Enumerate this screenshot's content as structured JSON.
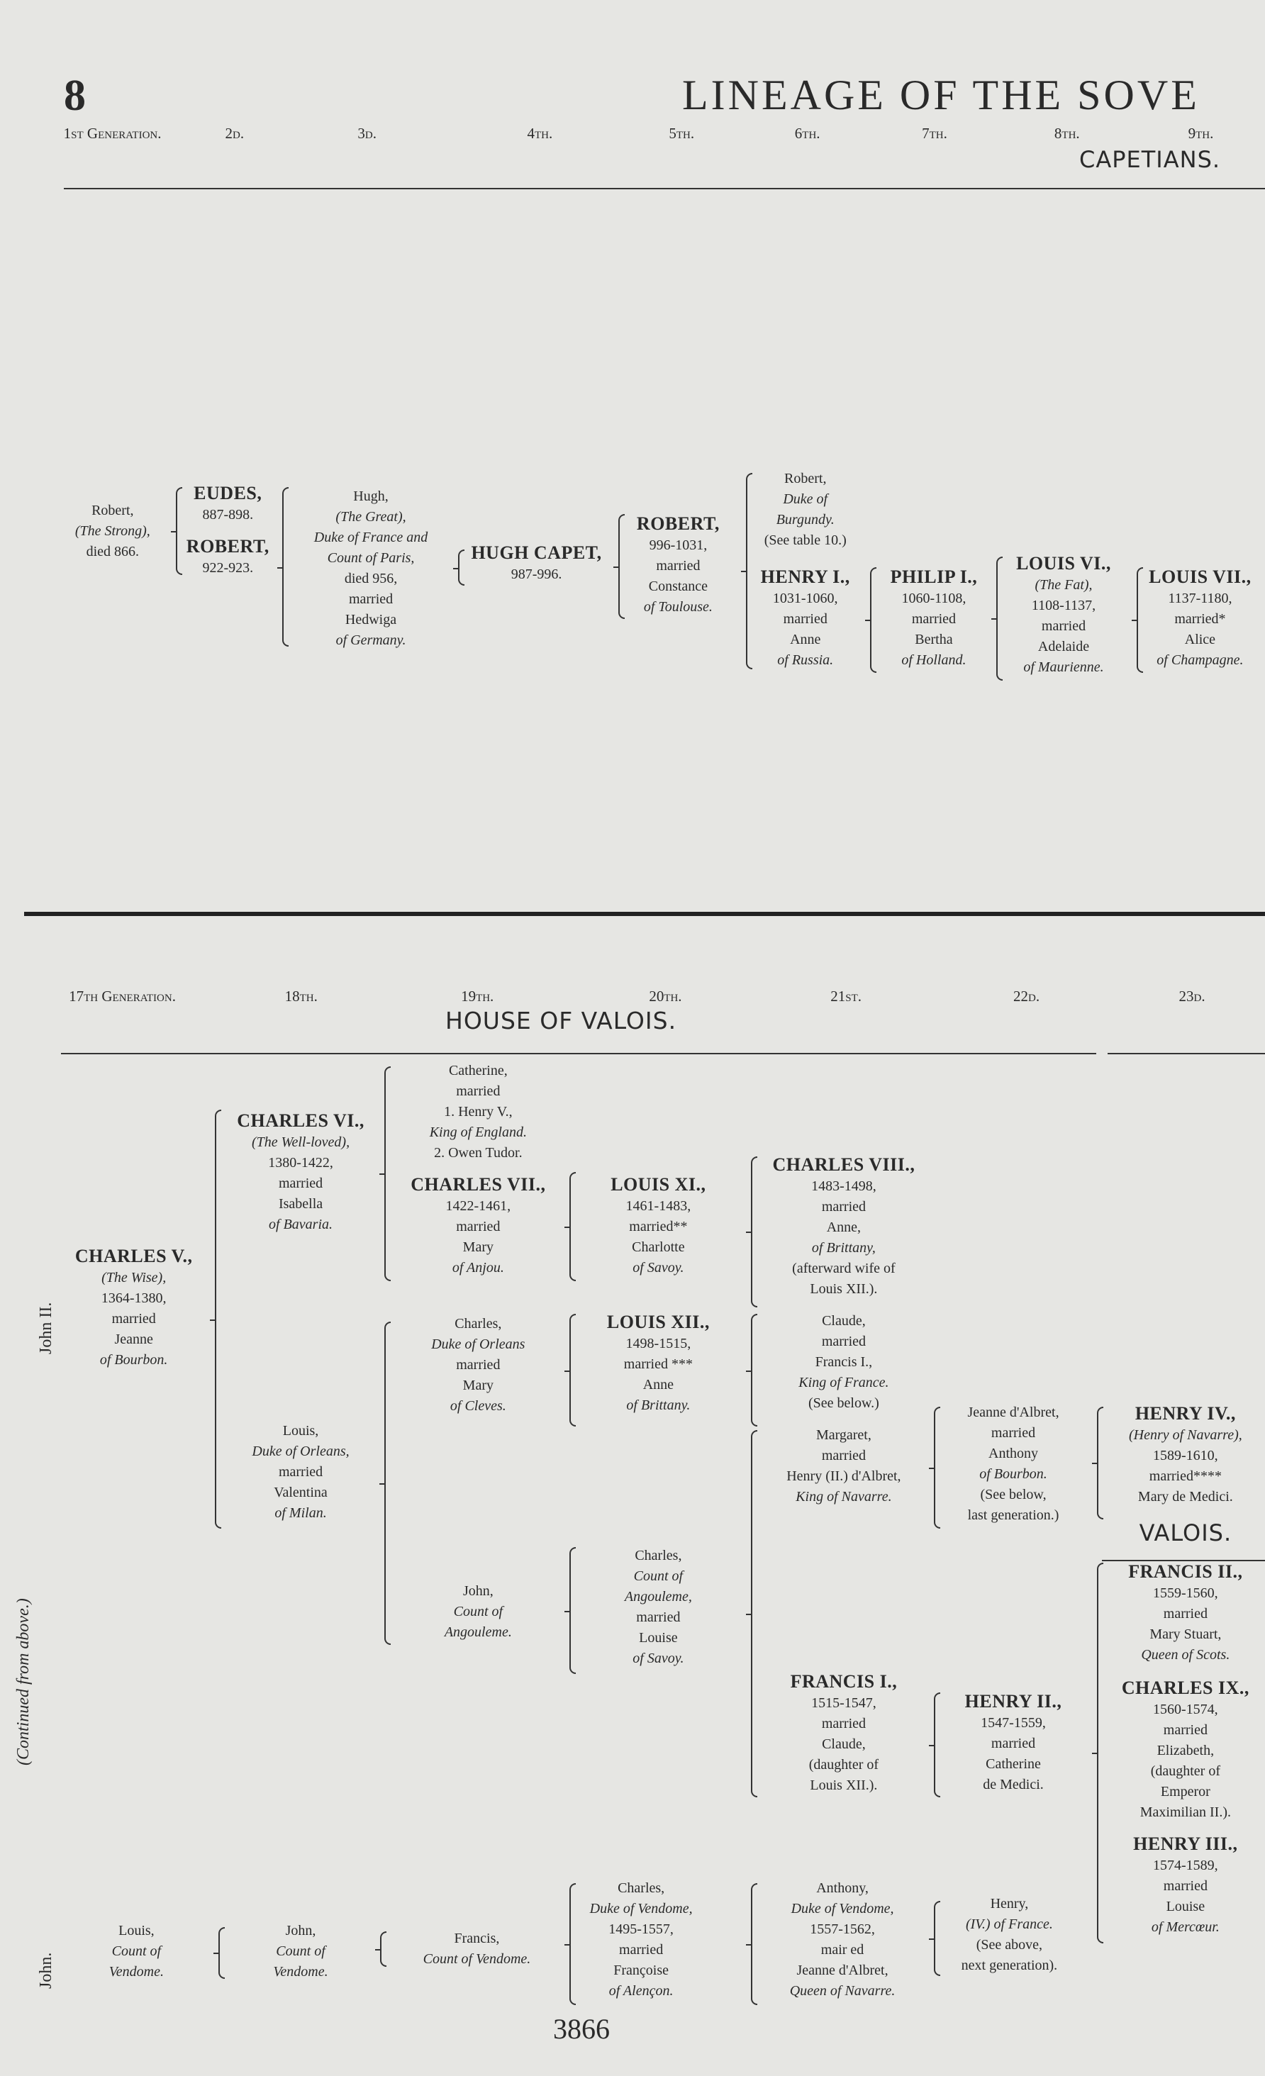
{
  "page": {
    "number": "8",
    "title": "LINEAGE OF THE SOVE",
    "folio": "3866"
  },
  "top": {
    "generations": [
      "1st Generation.",
      "2d.",
      "3d.",
      "4th.",
      "5th.",
      "6th.",
      "7th.",
      "8th.",
      "9th."
    ],
    "house": "CAPETIANS.",
    "entries": [
      {
        "lines": [
          {
            "t": "Robert,",
            "s": ""
          },
          {
            "t": "(The Strong),",
            "s": "i"
          },
          {
            "t": "died 866.",
            "s": ""
          }
        ]
      },
      {
        "lines": [
          {
            "t": "EUDES,",
            "s": "b"
          },
          {
            "t": "887-898.",
            "s": ""
          }
        ]
      },
      {
        "lines": [
          {
            "t": "ROBERT,",
            "s": "b"
          },
          {
            "t": "922-923.",
            "s": ""
          }
        ]
      },
      {
        "lines": [
          {
            "t": "Hugh,",
            "s": ""
          },
          {
            "t": "(The Great),",
            "s": "i"
          },
          {
            "t": "Duke of France and",
            "s": "i"
          },
          {
            "t": "Count of Paris,",
            "s": "i"
          },
          {
            "t": "died 956,",
            "s": ""
          },
          {
            "t": "married",
            "s": ""
          },
          {
            "t": "Hedwiga",
            "s": ""
          },
          {
            "t": "of Germany.",
            "s": "i"
          }
        ]
      },
      {
        "lines": [
          {
            "t": "HUGH CAPET,",
            "s": "b"
          },
          {
            "t": "987-996.",
            "s": ""
          }
        ]
      },
      {
        "lines": [
          {
            "t": "ROBERT,",
            "s": "b"
          },
          {
            "t": "996-1031,",
            "s": ""
          },
          {
            "t": "married",
            "s": ""
          },
          {
            "t": "Constance",
            "s": ""
          },
          {
            "t": "of Toulouse.",
            "s": "i"
          }
        ]
      },
      {
        "lines": [
          {
            "t": "Robert,",
            "s": ""
          },
          {
            "t": "Duke of",
            "s": "i"
          },
          {
            "t": "Burgundy.",
            "s": "i"
          },
          {
            "t": "(See table 10.)",
            "s": ""
          }
        ]
      },
      {
        "lines": [
          {
            "t": "HENRY I.,",
            "s": "b"
          },
          {
            "t": "1031-1060,",
            "s": ""
          },
          {
            "t": "married",
            "s": ""
          },
          {
            "t": "Anne",
            "s": ""
          },
          {
            "t": "of Russia.",
            "s": "i"
          }
        ]
      },
      {
        "lines": [
          {
            "t": "PHILIP I.,",
            "s": "b"
          },
          {
            "t": "1060-1108,",
            "s": ""
          },
          {
            "t": "married",
            "s": ""
          },
          {
            "t": "Bertha",
            "s": ""
          },
          {
            "t": "of Holland.",
            "s": "i"
          }
        ]
      },
      {
        "lines": [
          {
            "t": "LOUIS VI.,",
            "s": "b"
          },
          {
            "t": "(The Fat),",
            "s": "i"
          },
          {
            "t": "1108-1137,",
            "s": ""
          },
          {
            "t": "married",
            "s": ""
          },
          {
            "t": "Adelaide",
            "s": ""
          },
          {
            "t": "of Maurienne.",
            "s": "i"
          }
        ]
      },
      {
        "lines": [
          {
            "t": "LOUIS VII.,",
            "s": "b"
          },
          {
            "t": "1137-1180,",
            "s": ""
          },
          {
            "t": "married*",
            "s": ""
          },
          {
            "t": "Alice",
            "s": ""
          },
          {
            "t": "of Champagne.",
            "s": "i"
          }
        ]
      }
    ]
  },
  "bottom": {
    "generations": [
      "17th Generation.",
      "18th.",
      "19th.",
      "20th.",
      "21st.",
      "22d.",
      "23d."
    ],
    "house": "HOUSE OF VALOIS.",
    "side_labels": {
      "john_ii": "John II.",
      "continued": "(Continued from above.)",
      "john": "John."
    },
    "entries": [
      {
        "lines": [
          {
            "t": "CHARLES V.,",
            "s": "b"
          },
          {
            "t": "(The Wise),",
            "s": "i"
          },
          {
            "t": "1364-1380,",
            "s": ""
          },
          {
            "t": "married",
            "s": ""
          },
          {
            "t": "Jeanne",
            "s": ""
          },
          {
            "t": "of Bourbon.",
            "s": "i"
          }
        ]
      },
      {
        "lines": [
          {
            "t": "CHARLES VI.,",
            "s": "b"
          },
          {
            "t": "(The Well-loved),",
            "s": "i"
          },
          {
            "t": "1380-1422,",
            "s": ""
          },
          {
            "t": "married",
            "s": ""
          },
          {
            "t": "Isabella",
            "s": ""
          },
          {
            "t": "of Bavaria.",
            "s": "i"
          }
        ]
      },
      {
        "lines": [
          {
            "t": "Louis,",
            "s": ""
          },
          {
            "t": "Duke of Orleans,",
            "s": "i"
          },
          {
            "t": "married",
            "s": ""
          },
          {
            "t": "Valentina",
            "s": ""
          },
          {
            "t": "of Milan.",
            "s": "i"
          }
        ]
      },
      {
        "lines": [
          {
            "t": "Catherine,",
            "s": ""
          },
          {
            "t": "married",
            "s": ""
          },
          {
            "t": "1. Henry V.,",
            "s": ""
          },
          {
            "t": "King of England.",
            "s": "i"
          },
          {
            "t": "2. Owen Tudor.",
            "s": ""
          }
        ]
      },
      {
        "lines": [
          {
            "t": "CHARLES VII.,",
            "s": "b"
          },
          {
            "t": "1422-1461,",
            "s": ""
          },
          {
            "t": "married",
            "s": ""
          },
          {
            "t": "Mary",
            "s": ""
          },
          {
            "t": "of Anjou.",
            "s": "i"
          }
        ]
      },
      {
        "lines": [
          {
            "t": "Charles,",
            "s": ""
          },
          {
            "t": "Duke of Orleans",
            "s": "i"
          },
          {
            "t": "married",
            "s": ""
          },
          {
            "t": "Mary",
            "s": ""
          },
          {
            "t": "of Cleves.",
            "s": "i"
          }
        ]
      },
      {
        "lines": [
          {
            "t": "John,",
            "s": ""
          },
          {
            "t": "Count of",
            "s": "i"
          },
          {
            "t": "Angouleme.",
            "s": "i"
          }
        ]
      },
      {
        "lines": [
          {
            "t": "LOUIS XI.,",
            "s": "b"
          },
          {
            "t": "1461-1483,",
            "s": ""
          },
          {
            "t": "married**",
            "s": ""
          },
          {
            "t": "Charlotte",
            "s": ""
          },
          {
            "t": "of Savoy.",
            "s": "i"
          }
        ]
      },
      {
        "lines": [
          {
            "t": "LOUIS XII.,",
            "s": "b"
          },
          {
            "t": "1498-1515,",
            "s": ""
          },
          {
            "t": "married ***",
            "s": ""
          },
          {
            "t": "Anne",
            "s": ""
          },
          {
            "t": "of Brittany.",
            "s": "i"
          }
        ]
      },
      {
        "lines": [
          {
            "t": "Charles,",
            "s": ""
          },
          {
            "t": "Count of",
            "s": "i"
          },
          {
            "t": "Angouleme,",
            "s": "i"
          },
          {
            "t": "married",
            "s": ""
          },
          {
            "t": "Louise",
            "s": ""
          },
          {
            "t": "of Savoy.",
            "s": "i"
          }
        ]
      },
      {
        "lines": [
          {
            "t": "CHARLES VIII.,",
            "s": "b"
          },
          {
            "t": "1483-1498,",
            "s": ""
          },
          {
            "t": "married",
            "s": ""
          },
          {
            "t": "Anne,",
            "s": ""
          },
          {
            "t": "of Brittany,",
            "s": "i"
          },
          {
            "t": "(afterward wife of",
            "s": ""
          },
          {
            "t": "Louis XII.).",
            "s": ""
          }
        ]
      },
      {
        "lines": [
          {
            "t": "Claude,",
            "s": ""
          },
          {
            "t": "married",
            "s": ""
          },
          {
            "t": "Francis I.,",
            "s": ""
          },
          {
            "t": "King of France.",
            "s": "i"
          },
          {
            "t": "(See below.)",
            "s": ""
          }
        ]
      },
      {
        "lines": [
          {
            "t": "Margaret,",
            "s": ""
          },
          {
            "t": "married",
            "s": ""
          },
          {
            "t": "Henry (II.) d'Albret,",
            "s": ""
          },
          {
            "t": "King of Navarre.",
            "s": "i"
          }
        ]
      },
      {
        "lines": [
          {
            "t": "FRANCIS I.,",
            "s": "b"
          },
          {
            "t": "1515-1547,",
            "s": ""
          },
          {
            "t": "married",
            "s": ""
          },
          {
            "t": "Claude,",
            "s": ""
          },
          {
            "t": "(daughter of",
            "s": ""
          },
          {
            "t": "Louis XII.).",
            "s": ""
          }
        ]
      },
      {
        "lines": [
          {
            "t": "Jeanne d'Albret,",
            "s": ""
          },
          {
            "t": "married",
            "s": ""
          },
          {
            "t": "Anthony",
            "s": ""
          },
          {
            "t": "of Bourbon.",
            "s": "i"
          },
          {
            "t": "(See below,",
            "s": ""
          },
          {
            "t": "last generation.)",
            "s": ""
          }
        ]
      },
      {
        "lines": [
          {
            "t": "HENRY II.,",
            "s": "b"
          },
          {
            "t": "1547-1559,",
            "s": ""
          },
          {
            "t": "married",
            "s": ""
          },
          {
            "t": "Catherine",
            "s": ""
          },
          {
            "t": "de Medici.",
            "s": ""
          }
        ]
      },
      {
        "lines": [
          {
            "t": "HENRY IV.,",
            "s": "b"
          },
          {
            "t": "(Henry of Navarre),",
            "s": "i"
          },
          {
            "t": "1589-1610,",
            "s": ""
          },
          {
            "t": "married****",
            "s": ""
          },
          {
            "t": "Mary de Medici.",
            "s": ""
          }
        ]
      },
      {
        "lines": [
          {
            "t": "VALOIS.",
            "s": "h"
          }
        ]
      },
      {
        "lines": [
          {
            "t": "FRANCIS II.,",
            "s": "b"
          },
          {
            "t": "1559-1560,",
            "s": ""
          },
          {
            "t": "married",
            "s": ""
          },
          {
            "t": "Mary Stuart,",
            "s": ""
          },
          {
            "t": "Queen of Scots.",
            "s": "i"
          }
        ]
      },
      {
        "lines": [
          {
            "t": "CHARLES IX.,",
            "s": "b"
          },
          {
            "t": "1560-1574,",
            "s": ""
          },
          {
            "t": "married",
            "s": ""
          },
          {
            "t": "Elizabeth,",
            "s": ""
          },
          {
            "t": "(daughter of",
            "s": ""
          },
          {
            "t": "Emperor",
            "s": ""
          },
          {
            "t": "Maximilian II.).",
            "s": ""
          }
        ]
      },
      {
        "lines": [
          {
            "t": "HENRY III.,",
            "s": "b"
          },
          {
            "t": "1574-1589,",
            "s": ""
          },
          {
            "t": "married",
            "s": ""
          },
          {
            "t": "Louise",
            "s": ""
          },
          {
            "t": "of Mercœur.",
            "s": "i"
          }
        ]
      },
      {
        "lines": [
          {
            "t": "Louis,",
            "s": ""
          },
          {
            "t": "Count of",
            "s": "i"
          },
          {
            "t": "Vendome.",
            "s": "i"
          }
        ]
      },
      {
        "lines": [
          {
            "t": "John,",
            "s": ""
          },
          {
            "t": "Count of",
            "s": "i"
          },
          {
            "t": "Vendome.",
            "s": "i"
          }
        ]
      },
      {
        "lines": [
          {
            "t": "Francis,",
            "s": ""
          },
          {
            "t": "Count of Vendome.",
            "s": "i"
          }
        ]
      },
      {
        "lines": [
          {
            "t": "Charles,",
            "s": ""
          },
          {
            "t": "Duke of Vendome,",
            "s": "i"
          },
          {
            "t": "1495-1557,",
            "s": ""
          },
          {
            "t": "married",
            "s": ""
          },
          {
            "t": "Françoise",
            "s": ""
          },
          {
            "t": "of Alençon.",
            "s": "i"
          }
        ]
      },
      {
        "lines": [
          {
            "t": "Anthony,",
            "s": ""
          },
          {
            "t": "Duke of Vendome,",
            "s": "i"
          },
          {
            "t": "1557-1562,",
            "s": ""
          },
          {
            "t": "mair ed",
            "s": ""
          },
          {
            "t": "Jeanne d'Albret,",
            "s": ""
          },
          {
            "t": "Queen of Navarre.",
            "s": "i"
          }
        ]
      },
      {
        "lines": [
          {
            "t": "Henry,",
            "s": ""
          },
          {
            "t": "(IV.) of France.",
            "s": "i"
          },
          {
            "t": "(See above,",
            "s": ""
          },
          {
            "t": "next generation).",
            "s": ""
          }
        ]
      }
    ]
  }
}
